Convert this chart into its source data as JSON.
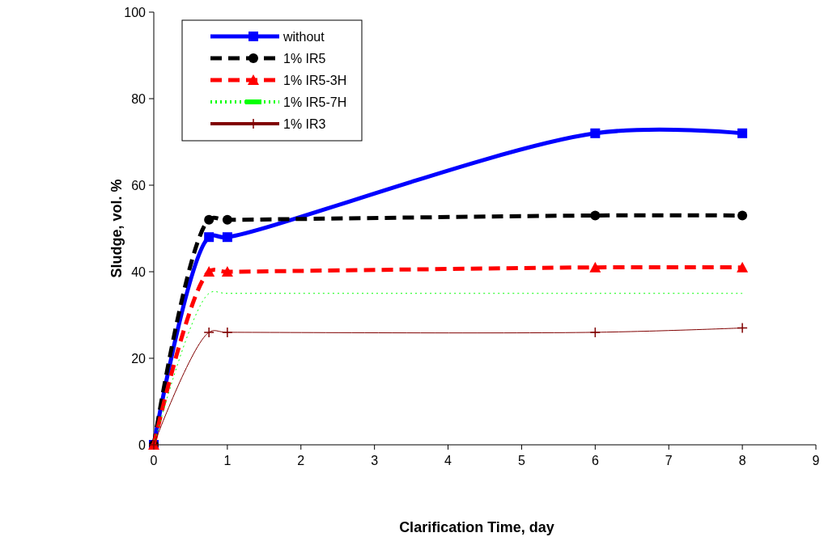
{
  "chart_data": {
    "type": "line",
    "xlabel": "Clarification Time, day",
    "ylabel": "Sludge, vol. %",
    "xlim": [
      0,
      9
    ],
    "xticks": [
      0,
      1,
      2,
      3,
      4,
      5,
      6,
      7,
      8,
      9
    ],
    "ylim": [
      0,
      100
    ],
    "yticks": [
      0,
      20,
      40,
      60,
      80,
      100
    ],
    "grid": false,
    "legend": "top left",
    "x": [
      0,
      0.75,
      1,
      6,
      8
    ],
    "series": [
      {
        "name": "without",
        "color": "#0000ff",
        "marker": "square",
        "line_style": "solid",
        "values": [
          0,
          48,
          48,
          72,
          72
        ]
      },
      {
        "name": "1% IR5",
        "color": "#000000",
        "marker": "circle",
        "line_style": "dashed",
        "values": [
          0,
          52,
          52,
          53,
          53
        ]
      },
      {
        "name": "1% IR5-3H",
        "color": "#ff0000",
        "marker": "triangle",
        "line_style": "dashed",
        "values": [
          0,
          40,
          40,
          41,
          41
        ]
      },
      {
        "name": "1% IR5-7H",
        "color": "#00ff00",
        "marker": "none",
        "line_style": "dotted",
        "values": [
          0,
          35,
          35,
          35,
          35
        ]
      },
      {
        "name": "1% IR3",
        "color": "#800000",
        "marker": "cross",
        "line_style": "solid",
        "values": [
          0,
          26,
          26,
          26,
          27
        ]
      }
    ]
  }
}
